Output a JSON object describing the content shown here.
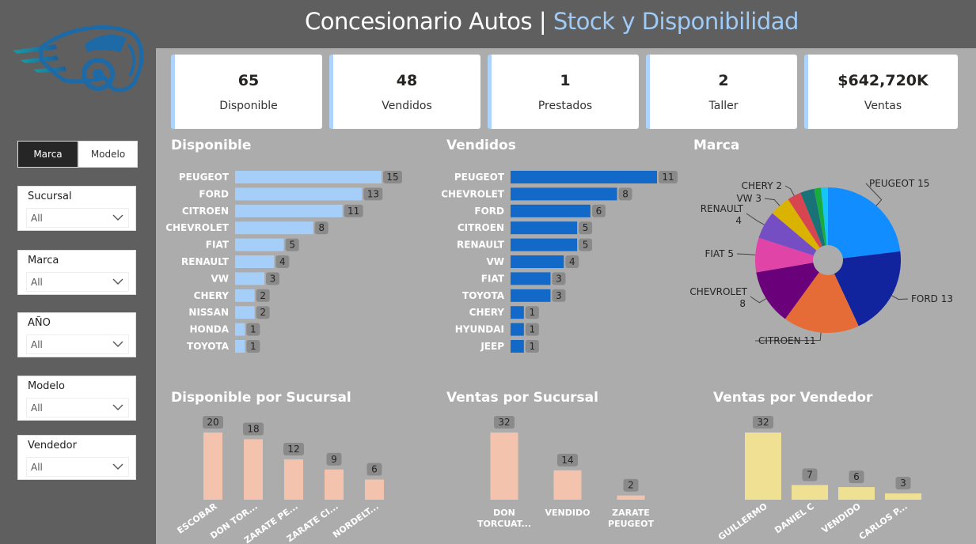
{
  "header": {
    "title_main": "Concesionario Autos",
    "title_sep": "|",
    "title_accent": "Stock y Disponibilidad"
  },
  "toggle": {
    "brand": "Marca",
    "model": "Modelo"
  },
  "slicers": [
    {
      "label": "Sucursal",
      "value": "All"
    },
    {
      "label": "Marca",
      "value": "All"
    },
    {
      "label": "AÑO",
      "value": "All"
    },
    {
      "label": "Modelo",
      "value": "All"
    },
    {
      "label": "Vendedor",
      "value": "All"
    }
  ],
  "kpis": [
    {
      "value": "65",
      "label": "Disponible"
    },
    {
      "value": "48",
      "label": "Vendidos"
    },
    {
      "value": "1",
      "label": "Prestados"
    },
    {
      "value": "2",
      "label": "Taller"
    },
    {
      "value": "$642,720K",
      "label": "Ventas"
    }
  ],
  "sections": {
    "disponible": "Disponible",
    "vendidos": "Vendidos",
    "marca": "Marca",
    "disp_sucursal": "Disponible por Sucursal",
    "ventas_sucursal": "Ventas por Sucursal",
    "ventas_vendedor": "Ventas por Vendedor"
  },
  "colors": {
    "disponible_bar": "#a5cef8",
    "vendidos_bar": "#1269c7",
    "sucursal_bar": "#f4c3ad",
    "vendedor_bar": "#efe093",
    "kpi_accent": "#aed4fb"
  },
  "chart_data": [
    {
      "id": "disponible",
      "type": "bar",
      "orientation": "horizontal",
      "categories": [
        "PEUGEOT",
        "FORD",
        "CITROEN",
        "CHEVROLET",
        "FIAT",
        "RENAULT",
        "VW",
        "CHERY",
        "NISSAN",
        "HONDA",
        "TOYOTA"
      ],
      "values": [
        15,
        13,
        11,
        8,
        5,
        4,
        3,
        2,
        2,
        1,
        1
      ]
    },
    {
      "id": "vendidos",
      "type": "bar",
      "orientation": "horizontal",
      "categories": [
        "PEUGEOT",
        "CHEVROLET",
        "FORD",
        "CITROEN",
        "RENAULT",
        "VW",
        "FIAT",
        "TOYOTA",
        "CHERY",
        "HYUNDAI",
        "JEEP"
      ],
      "values": [
        11,
        8,
        6,
        5,
        5,
        4,
        3,
        3,
        1,
        1,
        1
      ]
    },
    {
      "id": "marca",
      "type": "pie",
      "slices": [
        {
          "label": "PEUGEOT",
          "display": "PEUGEOT 15",
          "value": 15,
          "color": "#118dff"
        },
        {
          "label": "FORD",
          "display": "FORD 13",
          "value": 13,
          "color": "#12239e"
        },
        {
          "label": "CITROEN",
          "display": "CITROEN 11",
          "value": 11,
          "color": "#e66c37"
        },
        {
          "label": "CHEVROLET",
          "display": "CHEVROLET 8",
          "value": 8,
          "color": "#6b007b"
        },
        {
          "label": "FIAT",
          "display": "FIAT 5",
          "value": 5,
          "color": "#e044a7"
        },
        {
          "label": "RENAULT",
          "display": "RENAULT 4",
          "value": 4,
          "color": "#744ec2"
        },
        {
          "label": "VW",
          "display": "VW 3",
          "value": 3,
          "color": "#d9b300"
        },
        {
          "label": "CHERY",
          "display": "CHERY 2",
          "value": 2,
          "color": "#d64550"
        },
        {
          "label": "",
          "display": "",
          "value": 2,
          "color": "#197278"
        },
        {
          "label": "",
          "display": "",
          "value": 1,
          "color": "#1aab40"
        },
        {
          "label": "",
          "display": "",
          "value": 1,
          "color": "#15c6f4"
        }
      ]
    },
    {
      "id": "disp_sucursal",
      "type": "bar",
      "categories": [
        "ESCOBAR",
        "DON TOR...",
        "ZARATE PE...",
        "ZARATE CI...",
        "NORDELT..."
      ],
      "values": [
        20,
        18,
        12,
        9,
        6
      ]
    },
    {
      "id": "ventas_sucursal",
      "type": "bar",
      "categories": [
        "DON TORCUAT...",
        "VENDIDO",
        "ZARATE PEUGEOT"
      ],
      "values": [
        32,
        14,
        2
      ]
    },
    {
      "id": "ventas_vendedor",
      "type": "bar",
      "categories": [
        "GUILLERMO",
        "DANIEL C",
        "VENDIDO",
        "CARLOS P..."
      ],
      "values": [
        32,
        7,
        6,
        3
      ]
    }
  ]
}
